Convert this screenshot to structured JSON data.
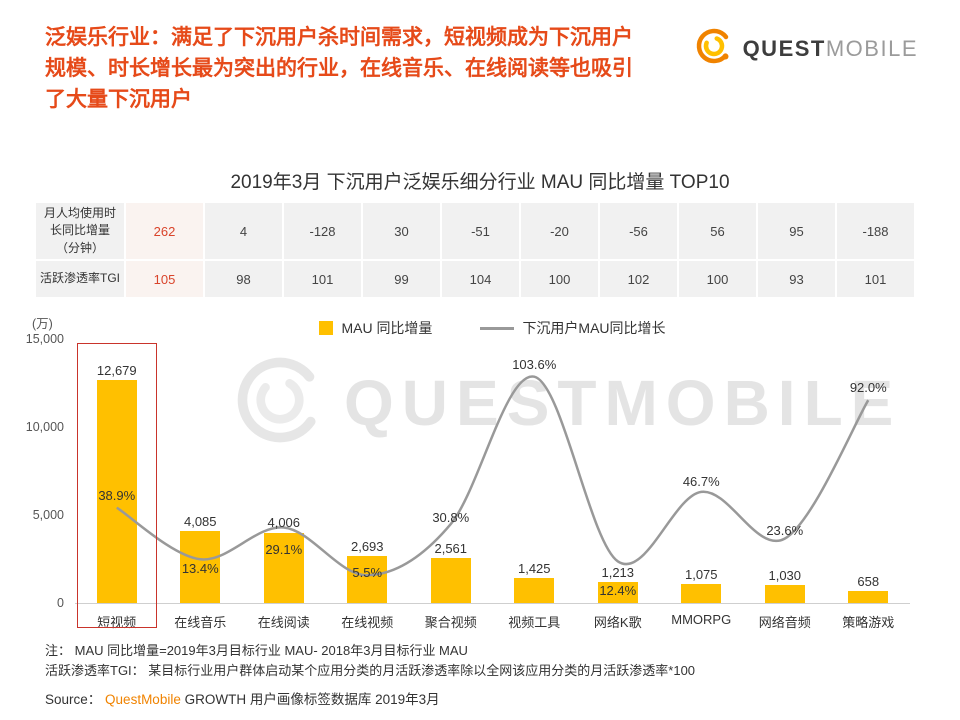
{
  "colors": {
    "accent": "#E64A19",
    "bar": "#FFC000",
    "line": "#999999",
    "highlight_box": "#C9342B",
    "red_text": "#D9442B",
    "brand_orange": "#F08300",
    "brand_yellow": "#FFC000",
    "watermark": "#E4E4E4",
    "table_bg": "#F1F1F1"
  },
  "header": {
    "lines": [
      "泛娱乐行业：满足了下沉用户杀时间需求，短视频成为下沉用户",
      "规模、时长增长最为突出的行业，在线音乐、在线阅读等也吸引",
      "了大量下沉用户"
    ]
  },
  "logo": {
    "quest": "QUEST",
    "mobile": "MOBILE"
  },
  "chart_title": "2019年3月 下沉用户泛娱乐细分行业 MAU 同比增量 TOP10",
  "table": {
    "rows": [
      {
        "label": "月人均使用时长同比增量（分钟）",
        "values": [
          "262",
          "4",
          "-128",
          "30",
          "-51",
          "-20",
          "-56",
          "56",
          "95",
          "-188"
        ]
      },
      {
        "label": "活跃渗透率TGI",
        "values": [
          "105",
          "98",
          "101",
          "99",
          "104",
          "100",
          "102",
          "100",
          "93",
          "101"
        ]
      }
    ]
  },
  "legend": {
    "bar": "MAU 同比增量",
    "line": "下沉用户MAU同比增长"
  },
  "chart_data": {
    "type": "bar+line",
    "title": "2019年3月 下沉用户泛娱乐细分行业 MAU 同比增量 TOP10",
    "ylabel": "(万)",
    "ylim": [
      0,
      15000
    ],
    "yticks": [
      0,
      5000,
      10000,
      15000
    ],
    "ytick_labels": [
      "0",
      "5,000",
      "10,000",
      "15,000"
    ],
    "grid": false,
    "legend_position": "top-center",
    "categories": [
      "短视频",
      "在线音乐",
      "在线阅读",
      "在线视频",
      "聚合视频",
      "视频工具",
      "网络K歌",
      "MMORPG",
      "网络音频",
      "策略游戏"
    ],
    "highlighted_category": "短视频",
    "series": [
      {
        "name": "MAU 同比增量",
        "type": "bar",
        "color": "#FFC000",
        "values": [
          12679,
          4085,
          4006,
          2693,
          2561,
          1425,
          1213,
          1075,
          1030,
          658
        ],
        "labels": [
          "12,679",
          "4,085",
          "4,006",
          "2,693",
          "2,561",
          "1,425",
          "1,213",
          "1,075",
          "1,030",
          "658"
        ]
      },
      {
        "name": "下沉用户MAU同比增长",
        "type": "line",
        "color": "#999999",
        "values_percent": [
          38.9,
          13.4,
          29.1,
          5.5,
          30.8,
          103.6,
          12.4,
          46.7,
          23.6,
          92.0
        ],
        "labels": [
          "38.9%",
          "13.4%",
          "29.1%",
          "5.5%",
          "30.8%",
          "103.6%",
          "12.4%",
          "46.7%",
          "23.6%",
          "92.0%"
        ],
        "label_dy": [
          -20,
          2,
          14,
          -10,
          -14,
          -20,
          22,
          -18,
          -16,
          -20
        ],
        "secondary_axis": {
          "base_value": 1000,
          "units_per_percent": 115
        }
      }
    ]
  },
  "watermark": {
    "text": "QUESTMOBILE"
  },
  "footnotes": [
    "注：  MAU 同比增量=2019年3月目标行业 MAU- 2018年3月目标行业 MAU",
    "活跃渗透率TGI： 某目标行业用户群体启动某个应用分类的月活跃渗透率除以全网该应用分类的月活跃渗透率*100"
  ],
  "source": {
    "prefix": "Source：",
    "brand": "QuestMobile",
    "rest": " GROWTH 用户画像标签数据库 2019年3月"
  }
}
